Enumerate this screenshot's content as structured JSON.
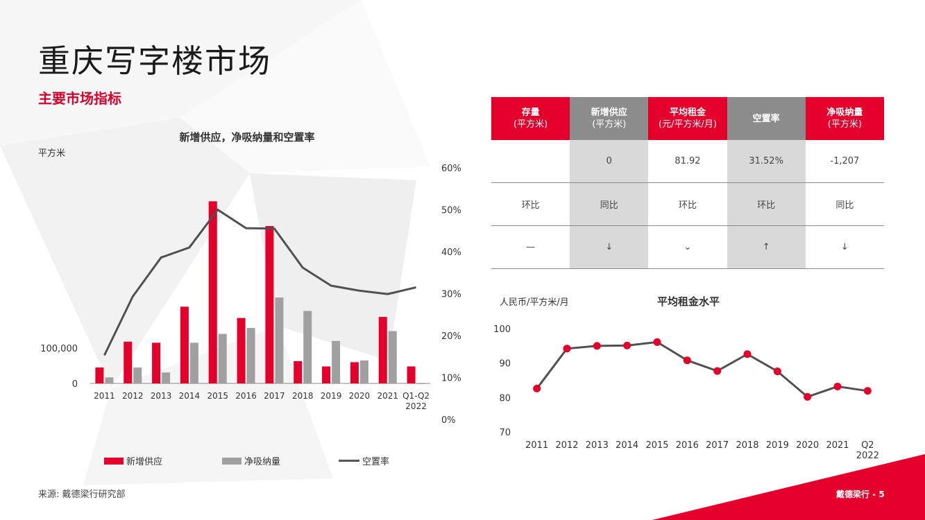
{
  "page": {
    "title": "重庆写字楼市场",
    "subtitle": "主要市场指标",
    "source": "来源: 戴德梁行研究部",
    "footer": "戴德梁行 - 5"
  },
  "colors": {
    "accent": "#e4002b",
    "gray_bar": "#a0a0a0",
    "line": "#505050"
  },
  "table": {
    "headers": [
      {
        "label": "存量",
        "unit": "(平方米)",
        "style": "red"
      },
      {
        "label": "新增供应",
        "unit": "(平方米)",
        "style": "gray"
      },
      {
        "label": "平均租金",
        "unit": "(元/平方米/月)",
        "style": "red"
      },
      {
        "label": "空置率",
        "unit": "",
        "style": "gray"
      },
      {
        "label": "净吸纳量",
        "unit": "(平方米)",
        "style": "red"
      }
    ],
    "rows": [
      [
        "",
        "0",
        "81.92",
        "31.52%",
        "-1,207"
      ],
      [
        "环比",
        "同比",
        "环比",
        "环比",
        "同比"
      ],
      [
        "—",
        "↓",
        "⌄",
        "↑",
        "↓"
      ]
    ]
  },
  "chart_data": [
    {
      "type": "bar",
      "title": "新增供应，净吸纳量和空置率",
      "ylabel": "平方米",
      "y_tick_labels": [
        "0",
        "100,000"
      ],
      "y2_tick_labels": [
        "0%",
        "10%",
        "20%",
        "30%",
        "40%",
        "50%",
        "60%"
      ],
      "ylim": [
        0,
        520000
      ],
      "y2lim": [
        0,
        60
      ],
      "categories": [
        "2011",
        "2012",
        "2013",
        "2014",
        "2015",
        "2016",
        "2017",
        "2018",
        "2019",
        "2020",
        "2021",
        "Q1-Q2\n2022"
      ],
      "series": [
        {
          "name": "新增供应",
          "kind": "bar",
          "values": [
            45000,
            118000,
            115000,
            217000,
            515000,
            185000,
            445000,
            63000,
            48000,
            60000,
            188000,
            48000
          ]
        },
        {
          "name": "净吸纳量",
          "kind": "bar",
          "values": [
            17000,
            45000,
            31000,
            115000,
            140000,
            157000,
            243000,
            205000,
            120000,
            65000,
            148000,
            -1207
          ]
        },
        {
          "name": "空置率",
          "kind": "line",
          "axis": "secondary",
          "values": [
            15.3,
            29.3,
            38.6,
            41.0,
            50.0,
            45.6,
            45.5,
            36.2,
            31.9,
            30.7,
            29.9,
            31.5
          ]
        }
      ],
      "legend": [
        "新增供应",
        "净吸纳量",
        "空置率"
      ]
    },
    {
      "type": "line",
      "title": "平均租金水平",
      "ylabel": "人民币/平方米/月",
      "ylim": [
        70,
        100
      ],
      "y_ticks": [
        70,
        80,
        90,
        100
      ],
      "categories": [
        "2011",
        "2012",
        "2013",
        "2014",
        "2015",
        "2016",
        "2017",
        "2018",
        "2019",
        "2020",
        "2021",
        "Q2\n2022"
      ],
      "values": [
        82.6,
        94.2,
        95.0,
        95.1,
        96.1,
        90.8,
        87.7,
        92.6,
        87.6,
        80.2,
        83.2,
        81.92
      ]
    }
  ]
}
